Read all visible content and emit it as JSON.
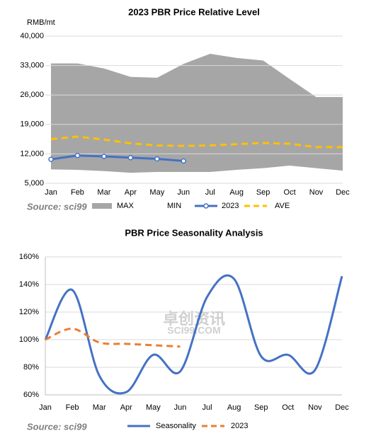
{
  "chart_data": [
    {
      "type": "area",
      "title": "2023  PBR Price Relative Level",
      "ylabel": "RMB/mt",
      "source": "Source: sci99",
      "categories": [
        "Jan",
        "Feb",
        "Mar",
        "Apr",
        "May",
        "Jun",
        "Jul",
        "Aug",
        "Sep",
        "Oct",
        "Nov",
        "Dec"
      ],
      "ylim": [
        5000,
        40000
      ],
      "yticks": [
        {
          "value": 5000,
          "label": "5,000"
        },
        {
          "value": 12000,
          "label": "12,000"
        },
        {
          "value": 19000,
          "label": "19,000"
        },
        {
          "value": 26000,
          "label": "26,000"
        },
        {
          "value": 33000,
          "label": "33,000"
        },
        {
          "value": 40000,
          "label": "40,000"
        }
      ],
      "grid": true,
      "series": [
        {
          "name": "MAX",
          "color": "#a6a6a6",
          "style": "area",
          "values": [
            33500,
            33500,
            32300,
            30300,
            30100,
            33400,
            35800,
            34800,
            34200,
            29800,
            25500,
            25500
          ]
        },
        {
          "name": "MIN",
          "color": "#ffffff",
          "style": "area",
          "values": [
            8300,
            8200,
            7900,
            7500,
            7700,
            7700,
            7700,
            8200,
            8600,
            9200,
            8600,
            8000
          ]
        },
        {
          "name": "2023",
          "color": "#4472c4",
          "style": "line",
          "markers": true,
          "values": [
            10700,
            11600,
            11400,
            11100,
            10800,
            10300,
            null,
            null,
            null,
            null,
            null,
            null
          ]
        },
        {
          "name": "AVE",
          "color": "#ffc000",
          "style": "line",
          "dashed": true,
          "values": [
            15500,
            16100,
            15400,
            14500,
            14000,
            13900,
            14000,
            14300,
            14600,
            14400,
            13600,
            13600
          ]
        }
      ]
    },
    {
      "type": "line",
      "title": "PBR Price Seasonality Analysis",
      "source": "Source: sci99",
      "watermark": "卓创资讯",
      "watermark_sub": "SCI99.COM",
      "categories": [
        "Jan",
        "Feb",
        "Mar",
        "Apr",
        "May",
        "Jun",
        "Jul",
        "Aug",
        "Sep",
        "Oct",
        "Nov",
        "Dec"
      ],
      "ylim": [
        60,
        160
      ],
      "yticks": [
        {
          "value": 60,
          "label": "60%"
        },
        {
          "value": 80,
          "label": "80%"
        },
        {
          "value": 100,
          "label": "100%"
        },
        {
          "value": 120,
          "label": "120%"
        },
        {
          "value": 140,
          "label": "140%"
        },
        {
          "value": 160,
          "label": "160%"
        }
      ],
      "grid": true,
      "smooth": true,
      "series": [
        {
          "name": "Seasonality",
          "color": "#4472c4",
          "style": "line",
          "values": [
            100,
            136,
            74,
            62,
            89,
            77,
            131,
            144,
            88,
            89,
            78,
            146
          ]
        },
        {
          "name": "2023",
          "color": "#ed7d31",
          "style": "line",
          "dashed": true,
          "values": [
            100,
            108,
            98,
            97,
            96,
            95,
            null,
            null,
            null,
            null,
            null,
            null
          ]
        }
      ]
    }
  ]
}
